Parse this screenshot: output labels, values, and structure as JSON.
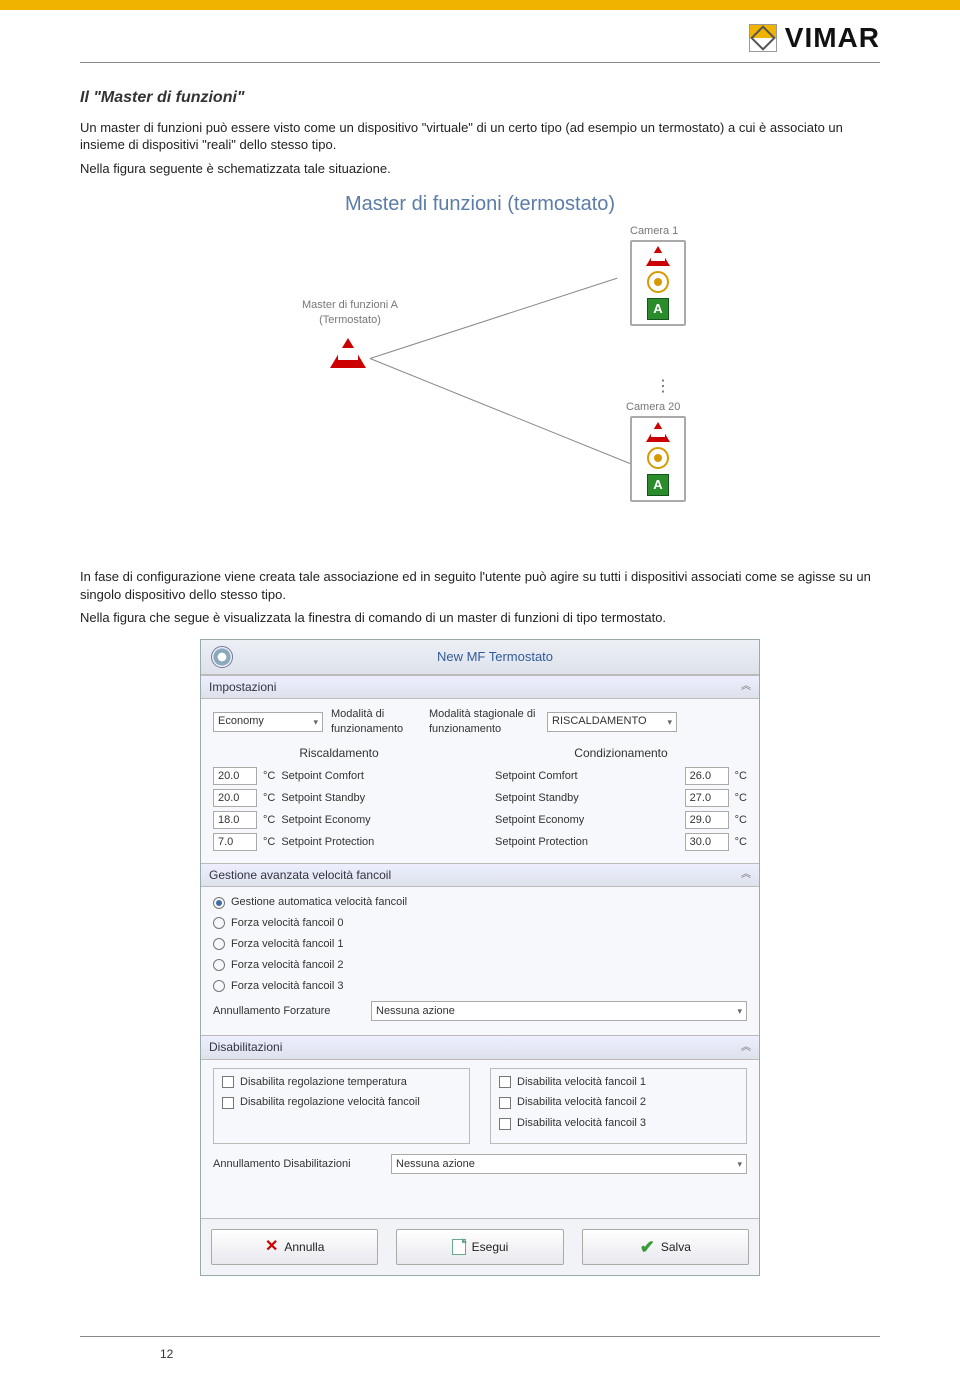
{
  "brand": "VIMAR",
  "heading": "Il \"Master di funzioni\"",
  "para1": "Un master di funzioni può essere visto come un dispositivo \"virtuale\" di un certo tipo (ad esempio un termostato) a cui è associato un insieme di dispositivi \"reali\" dello stesso tipo.",
  "para2": "Nella figura seguente è schematizzata tale situazione.",
  "diagram": {
    "title": "Master di funzioni (termostato)",
    "master_label_line1": "Master di funzioni A",
    "master_label_line2": "(Termostato)",
    "camera1": "Camera 1",
    "camera20": "Camera 20"
  },
  "para3": "In fase di configurazione viene creata tale associazione ed in seguito l'utente può agire su tutti i dispositivi associati come se agisse su un singolo dispositivo dello stesso tipo.",
  "para4": "Nella figura che segue è visualizzata la finestra di comando di un master di funzioni di tipo termostato.",
  "dialog": {
    "title": "New MF Termostato",
    "sec_impostazioni": "Impostazioni",
    "mode_value": "Economy",
    "mode_label": "Modalità di funzionamento",
    "season_label": "Modalità stagionale di funzionamento",
    "season_value": "RISCALDAMENTO",
    "col_heating": "Riscaldamento",
    "col_cooling": "Condizionamento",
    "heating": [
      {
        "v": "20.0",
        "u": "°C",
        "l": "Setpoint Comfort"
      },
      {
        "v": "20.0",
        "u": "°C",
        "l": "Setpoint Standby"
      },
      {
        "v": "18.0",
        "u": "°C",
        "l": "Setpoint Economy"
      },
      {
        "v": "7.0",
        "u": "°C",
        "l": "Setpoint Protection"
      }
    ],
    "cooling": [
      {
        "l": "Setpoint Comfort",
        "v": "26.0",
        "u": "°C"
      },
      {
        "l": "Setpoint Standby",
        "v": "27.0",
        "u": "°C"
      },
      {
        "l": "Setpoint Economy",
        "v": "29.0",
        "u": "°C"
      },
      {
        "l": "Setpoint Protection",
        "v": "30.0",
        "u": "°C"
      }
    ],
    "sec_fancoil": "Gestione avanzata velocità fancoil",
    "fancoil_opts": [
      "Gestione automatica velocità fancoil",
      "Forza velocità fancoil 0",
      "Forza velocità fancoil 1",
      "Forza velocità fancoil 2",
      "Forza velocità fancoil 3"
    ],
    "annull_forz_label": "Annullamento Forzature",
    "annull_forz_value": "Nessuna azione",
    "sec_disab": "Disabilitazioni",
    "disab_left": [
      "Disabilita regolazione temperatura",
      "Disabilita regolazione velocità fancoil"
    ],
    "disab_right": [
      "Disabilita velocità fancoil 1",
      "Disabilita velocità fancoil 2",
      "Disabilita velocità fancoil 3"
    ],
    "annull_disab_label": "Annullamento Disabilitazioni",
    "annull_disab_value": "Nessuna azione",
    "btn_cancel": "Annulla",
    "btn_exec": "Esegui",
    "btn_save": "Salva"
  },
  "pagenum": "12"
}
